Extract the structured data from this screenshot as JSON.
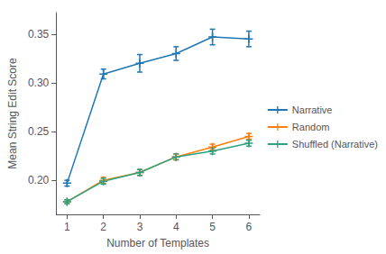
{
  "chart_data": {
    "type": "line",
    "xlabel": "Number of Templates",
    "ylabel": "Mean String Edit Score",
    "x": [
      1,
      2,
      3,
      4,
      5,
      6
    ],
    "series": [
      {
        "name": "Narrative",
        "color": "#1f77b4",
        "marker": "+",
        "values": [
          0.197,
          0.309,
          0.32,
          0.33,
          0.347,
          0.345
        ],
        "yerr": [
          0.003,
          0.005,
          0.009,
          0.007,
          0.008,
          0.008
        ]
      },
      {
        "name": "Random",
        "color": "#ff7f0e",
        "marker": "+",
        "values": [
          0.178,
          0.2,
          0.208,
          0.224,
          0.234,
          0.245
        ],
        "yerr": [
          0.002,
          0.003,
          0.003,
          0.003,
          0.003,
          0.003
        ]
      },
      {
        "name": "Shuffled (Narrative)",
        "color": "#2ca080",
        "marker": "+",
        "values": [
          0.178,
          0.199,
          0.208,
          0.224,
          0.23,
          0.238
        ],
        "yerr": [
          0.002,
          0.003,
          0.003,
          0.003,
          0.003,
          0.003
        ]
      }
    ],
    "xlim": [
      0.7,
      6.3
    ],
    "ylim": [
      0.165,
      0.372
    ],
    "xticks": [
      1,
      2,
      3,
      4,
      5,
      6
    ],
    "yticks": [
      {
        "value": 0.2,
        "label": "0.20"
      },
      {
        "value": 0.25,
        "label": "0.25"
      },
      {
        "value": 0.3,
        "label": "0.30"
      },
      {
        "value": 0.35,
        "label": "0.35"
      }
    ],
    "grid": false,
    "legend": "right"
  }
}
